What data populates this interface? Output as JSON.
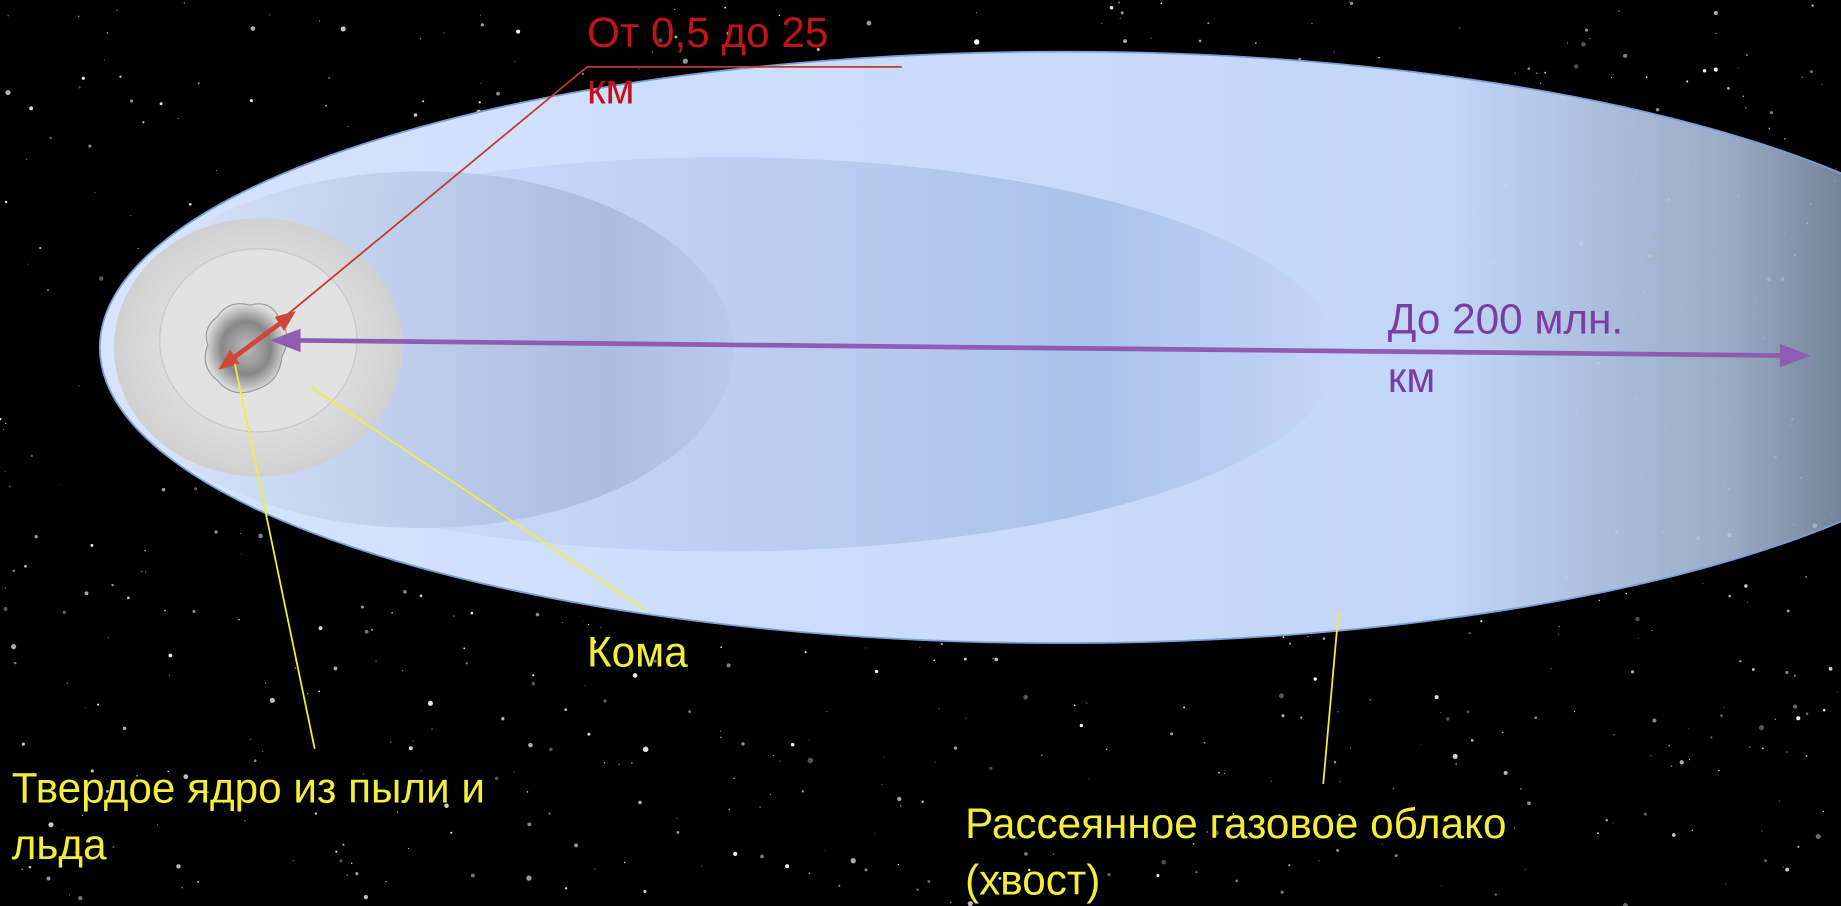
{
  "labels": {
    "nucleus_size": [
      "От 0,5 до 25",
      "км"
    ],
    "tail_length": [
      "До 200 млн.",
      "км"
    ],
    "coma": "Кома",
    "nucleus": [
      "Твердое ядро из пыли и",
      "льда"
    ],
    "tail": [
      "Рассеянное газовое облако",
      "(хвост)"
    ]
  }
}
